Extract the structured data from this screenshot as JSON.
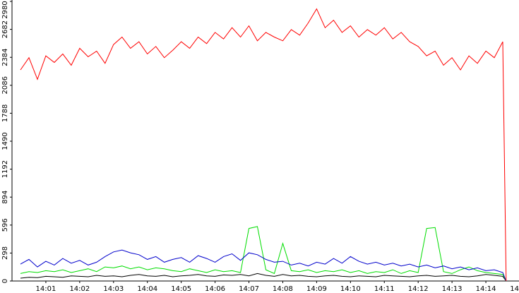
{
  "chart_data": {
    "type": "line",
    "x": [
      0.25,
      0.5,
      0.75,
      1,
      1.25,
      1.5,
      1.75,
      2,
      2.25,
      2.5,
      2.75,
      3,
      3.25,
      3.5,
      3.75,
      4,
      4.25,
      4.5,
      4.75,
      5,
      5.25,
      5.5,
      5.75,
      6,
      6.25,
      6.5,
      6.75,
      7,
      7.25,
      7.5,
      7.75,
      8,
      8.25,
      8.5,
      8.75,
      9,
      9.25,
      9.5,
      9.75,
      10,
      10.25,
      10.5,
      10.75,
      11,
      11.25,
      11.5,
      11.75,
      12,
      12.25,
      12.5,
      12.75,
      13,
      13.25,
      13.5,
      13.75,
      14,
      14.25,
      14.5,
      14.6
    ],
    "series": [
      {
        "color": "#ff0000",
        "values": [
          2250,
          2380,
          2150,
          2400,
          2330,
          2420,
          2300,
          2480,
          2390,
          2450,
          2320,
          2520,
          2600,
          2480,
          2550,
          2420,
          2500,
          2380,
          2460,
          2550,
          2480,
          2600,
          2530,
          2650,
          2580,
          2700,
          2600,
          2720,
          2560,
          2650,
          2600,
          2560,
          2680,
          2620,
          2750,
          2900,
          2700,
          2780,
          2650,
          2720,
          2600,
          2680,
          2620,
          2700,
          2580,
          2650,
          2550,
          2500,
          2400,
          2450,
          2300,
          2380,
          2250,
          2400,
          2320,
          2450,
          2380,
          2550,
          0
        ]
      },
      {
        "color": "#0000cc",
        "values": [
          180,
          230,
          150,
          210,
          170,
          240,
          190,
          220,
          170,
          200,
          260,
          310,
          330,
          300,
          280,
          230,
          260,
          200,
          230,
          250,
          200,
          270,
          240,
          200,
          260,
          290,
          220,
          300,
          280,
          230,
          200,
          210,
          170,
          190,
          160,
          200,
          180,
          240,
          190,
          260,
          210,
          180,
          200,
          170,
          190,
          160,
          180,
          150,
          170,
          140,
          160,
          130,
          150,
          120,
          140,
          110,
          120,
          90,
          0
        ]
      },
      {
        "color": "#00dd00",
        "values": [
          80,
          100,
          90,
          110,
          100,
          120,
          90,
          110,
          130,
          100,
          150,
          140,
          160,
          130,
          150,
          120,
          140,
          130,
          110,
          100,
          130,
          110,
          90,
          120,
          100,
          110,
          90,
          560,
          580,
          120,
          80,
          400,
          110,
          100,
          120,
          90,
          110,
          100,
          120,
          90,
          110,
          80,
          100,
          90,
          120,
          80,
          110,
          90,
          560,
          570,
          100,
          80,
          120,
          150,
          110,
          90,
          80,
          70,
          0
        ]
      },
      {
        "color": "#000000",
        "values": [
          30,
          40,
          35,
          50,
          45,
          40,
          55,
          50,
          45,
          60,
          50,
          55,
          45,
          60,
          70,
          55,
          50,
          60,
          45,
          55,
          60,
          70,
          55,
          50,
          65,
          60,
          70,
          55,
          80,
          60,
          50,
          70,
          55,
          60,
          50,
          45,
          55,
          60,
          50,
          45,
          55,
          50,
          45,
          60,
          55,
          50,
          45,
          55,
          60,
          50,
          55,
          60,
          50,
          45,
          55,
          70,
          60,
          50,
          0
        ]
      }
    ],
    "xlim": [
      0,
      15
    ],
    "xticks": [
      {
        "value": 1,
        "label": "14:01"
      },
      {
        "value": 2,
        "label": "14:02"
      },
      {
        "value": 3,
        "label": "14:03"
      },
      {
        "value": 4,
        "label": "14:04"
      },
      {
        "value": 5,
        "label": "14:05"
      },
      {
        "value": 6,
        "label": "14:06"
      },
      {
        "value": 7,
        "label": "14:07"
      },
      {
        "value": 8,
        "label": "14:08"
      },
      {
        "value": 9,
        "label": "14:09"
      },
      {
        "value": 10,
        "label": "14:10"
      },
      {
        "value": 11,
        "label": "14:11"
      },
      {
        "value": 12,
        "label": "14:12"
      },
      {
        "value": 13,
        "label": "14:13"
      },
      {
        "value": 14,
        "label": "14:14"
      },
      {
        "value": 15,
        "label": "14"
      }
    ],
    "ylim": [
      0,
      2980
    ],
    "yticks": [
      0,
      298,
      596,
      894,
      1192,
      1490,
      1788,
      2086,
      2384,
      2682,
      2980
    ]
  }
}
